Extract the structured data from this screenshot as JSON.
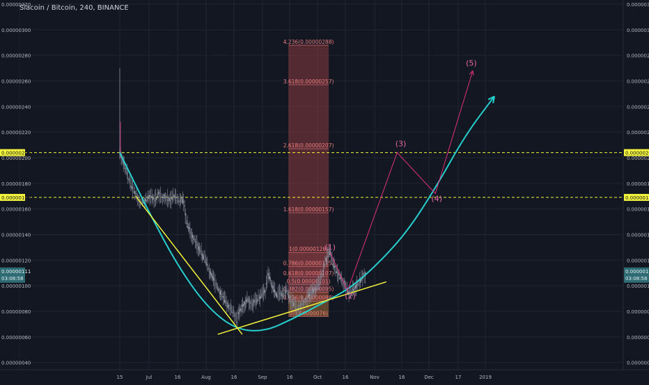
{
  "header": {
    "title": "Siacoin / Bitcoin, 240, BINANCE"
  },
  "colors": {
    "background": "#131722",
    "grid": "#1f2433",
    "axis_text": "#b2b5be",
    "candle": "#8a8f9e",
    "parabola": "#26d0ce",
    "trendline": "#f5f53b",
    "wave": "#e0307e",
    "fib_fill": "#8b3a3f",
    "fib_text": "#f08080",
    "level": "#f5f53b",
    "price_label_bg": "#2f6b73"
  },
  "chart_data": {
    "type": "line",
    "ylim": [
      3e-07,
      3.2e-06
    ],
    "y_ticks": [
      "0.00000040",
      "0.00000060",
      "0.00000080",
      "0.00000100",
      "0.00000120",
      "0.00000140",
      "0.00000160",
      "0.00000180",
      "0.00000200",
      "0.00000220",
      "0.00000240",
      "0.00000260",
      "0.00000280",
      "0.00000300",
      "0.00000320"
    ],
    "x_ticks": [
      "15",
      "Jul",
      "16",
      "Aug",
      "16",
      "Sep",
      "16",
      "Oct",
      "16",
      "Nov",
      "16",
      "Dec",
      "17",
      "2019"
    ],
    "price_levels": [
      {
        "label": "0.00000204",
        "value": 2.04e-06
      },
      {
        "label": "0.00000169",
        "value": 1.69e-06
      }
    ],
    "current_price_label": "0.00000111",
    "countdown_label": "03:08:58",
    "fib_levels": [
      {
        "label": "4.236(0.00000288)",
        "value": 2.88e-06
      },
      {
        "label": "3.618(0.00000257)",
        "value": 2.57e-06
      },
      {
        "label": "2.618(0.00000207)",
        "value": 2.07e-06
      },
      {
        "label": "1.618(0.00000157)",
        "value": 1.57e-06
      },
      {
        "label": "1(0.00000126)",
        "value": 1.26e-06
      },
      {
        "label": "0.786(0.00000115)",
        "value": 1.15e-06
      },
      {
        "label": "0.618(0.00000107)",
        "value": 1.07e-06
      },
      {
        "label": "0.5(0.00000101)",
        "value": 1.01e-06
      },
      {
        "label": "0.382(0.00000095)",
        "value": 9.5e-07
      },
      {
        "label": "0.236(0.00000088)",
        "value": 8.8e-07
      },
      {
        "label": "0(0.00000076)",
        "value": 7.6e-07
      }
    ],
    "wave_labels": [
      "(1)",
      "(2)",
      "(3)",
      "(4)",
      "(5)"
    ],
    "price_series": [
      [
        0,
        204
      ],
      [
        3,
        200
      ],
      [
        6,
        195
      ],
      [
        10,
        188
      ],
      [
        14,
        180
      ],
      [
        18,
        175
      ],
      [
        22,
        172
      ],
      [
        26,
        168
      ],
      [
        30,
        165
      ],
      [
        34,
        166
      ],
      [
        38,
        168
      ],
      [
        42,
        170
      ],
      [
        46,
        167
      ],
      [
        50,
        168
      ],
      [
        54,
        172
      ],
      [
        58,
        169
      ],
      [
        62,
        170
      ],
      [
        66,
        168
      ],
      [
        70,
        167
      ],
      [
        74,
        170
      ],
      [
        78,
        168
      ],
      [
        82,
        166
      ],
      [
        86,
        168
      ],
      [
        90,
        163
      ],
      [
        92,
        150
      ],
      [
        95,
        146
      ],
      [
        100,
        140
      ],
      [
        106,
        133
      ],
      [
        112,
        127
      ],
      [
        118,
        120
      ],
      [
        124,
        112
      ],
      [
        130,
        105
      ],
      [
        136,
        98
      ],
      [
        142,
        92
      ],
      [
        148,
        86
      ],
      [
        154,
        82
      ],
      [
        158,
        80
      ],
      [
        162,
        72
      ],
      [
        166,
        80
      ],
      [
        172,
        85
      ],
      [
        178,
        89
      ],
      [
        184,
        86
      ],
      [
        190,
        88
      ],
      [
        196,
        92
      ],
      [
        202,
        96
      ],
      [
        206,
        110
      ],
      [
        210,
        102
      ],
      [
        214,
        96
      ],
      [
        218,
        92
      ],
      [
        222,
        95
      ],
      [
        228,
        92
      ],
      [
        232,
        96
      ],
      [
        236,
        89
      ],
      [
        240,
        86
      ],
      [
        244,
        84
      ],
      [
        248,
        82
      ],
      [
        252,
        85
      ],
      [
        256,
        87
      ],
      [
        260,
        90
      ],
      [
        266,
        95
      ],
      [
        272,
        97
      ],
      [
        276,
        102
      ],
      [
        280,
        107
      ],
      [
        285,
        118
      ],
      [
        289,
        124
      ],
      [
        292,
        126
      ],
      [
        296,
        118
      ],
      [
        302,
        110
      ],
      [
        308,
        105
      ],
      [
        314,
        99
      ],
      [
        318,
        94
      ],
      [
        322,
        96
      ],
      [
        328,
        100
      ],
      [
        334,
        104
      ],
      [
        338,
        108
      ],
      [
        342,
        110
      ]
    ],
    "parabola": [
      [
        0,
        204
      ],
      [
        40,
        158
      ],
      [
        80,
        116
      ],
      [
        120,
        84
      ],
      [
        160,
        66
      ],
      [
        200,
        64
      ],
      [
        240,
        74
      ],
      [
        280,
        86
      ],
      [
        320,
        98
      ],
      [
        360,
        118
      ],
      [
        400,
        143
      ],
      [
        440,
        178
      ],
      [
        480,
        218
      ],
      [
        520,
        248
      ]
    ],
    "yellow_trend_1": [
      [
        22,
        170
      ],
      [
        170,
        62
      ]
    ],
    "yellow_trend_2": [
      [
        136,
        62
      ],
      [
        370,
        103
      ]
    ],
    "wave_path": [
      [
        292,
        126
      ],
      [
        316,
        96
      ],
      [
        385,
        204
      ],
      [
        438,
        172
      ],
      [
        490,
        268
      ]
    ],
    "fib_box": {
      "x0": 234,
      "x1": 290
    },
    "wave_label_points": [
      [
        292,
        128
      ],
      [
        320,
        90
      ],
      [
        390,
        209
      ],
      [
        440,
        166
      ],
      [
        488,
        272
      ]
    ]
  }
}
